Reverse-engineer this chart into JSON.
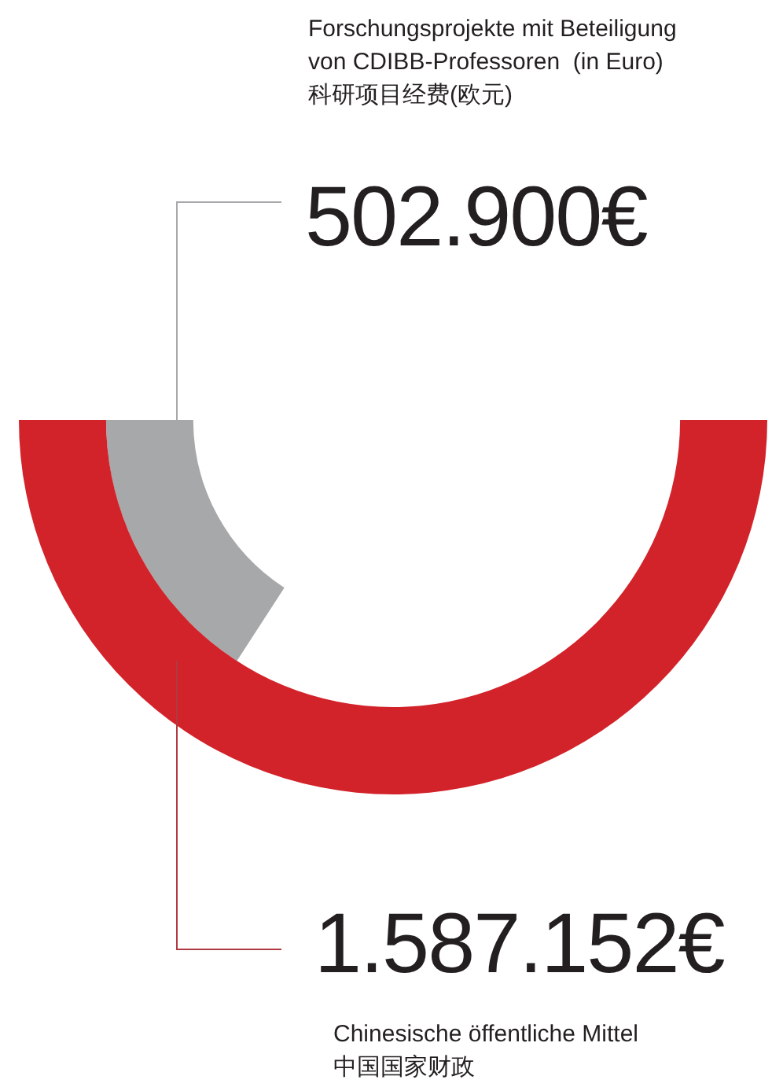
{
  "chart_data": {
    "type": "other",
    "categories": [
      "Forschungsprojekte mit Beteiligung\nvon CDIBB-Professoren  (in Euro)\n科研项目经费(欧元)",
      "Chinesische öffentliche Mittel\n中国国家财政"
    ],
    "values": [
      502900,
      1587152
    ],
    "value_labels": [
      "502.900€",
      "1.587.152€"
    ],
    "colors": [
      "#a7a8aa",
      "#d2232a"
    ]
  }
}
